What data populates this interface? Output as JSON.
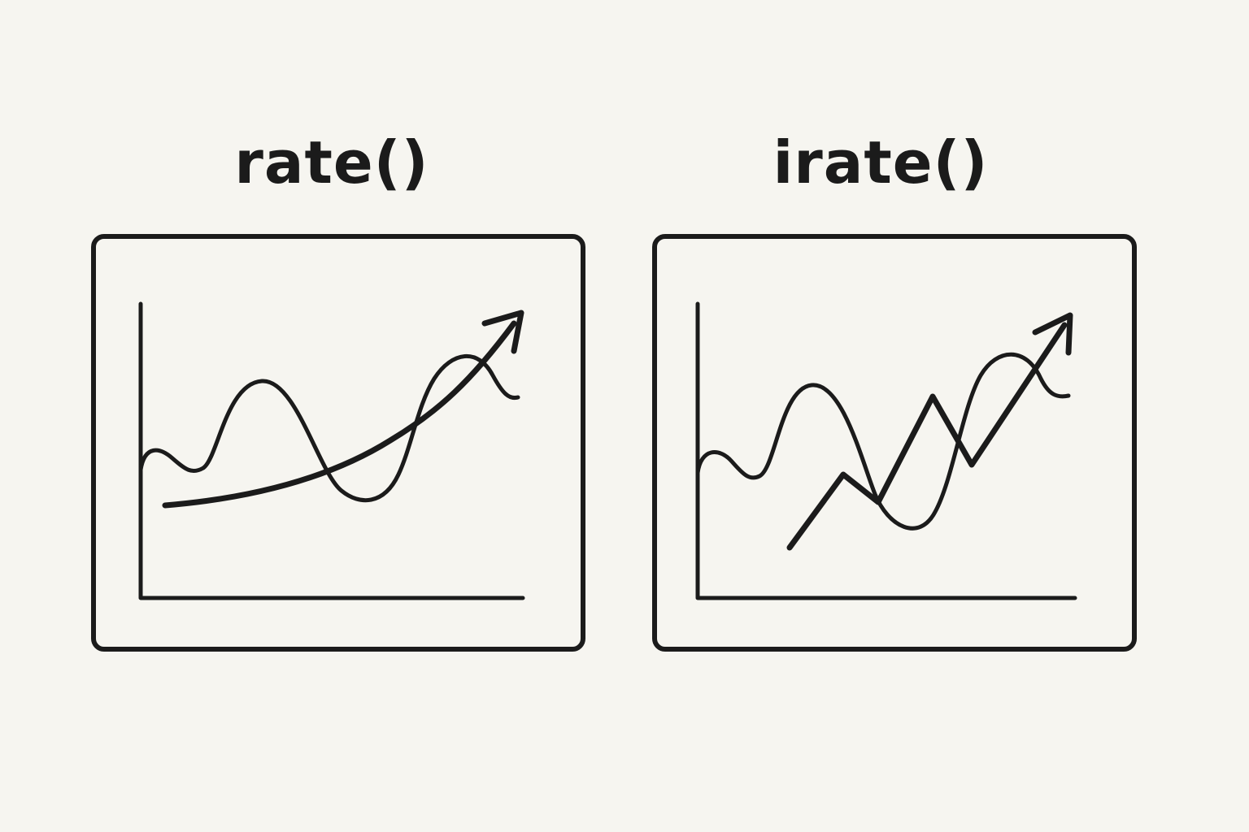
{
  "left_panel": {
    "title": "rate()"
  },
  "right_panel": {
    "title": "irate()"
  },
  "colors": {
    "background": "#f6f5f0",
    "ink": "#1b1b1b"
  }
}
